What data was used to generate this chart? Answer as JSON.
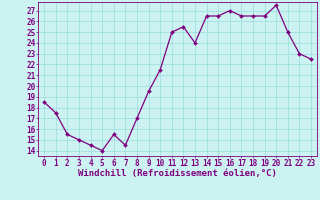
{
  "x": [
    0,
    1,
    2,
    3,
    4,
    5,
    6,
    7,
    8,
    9,
    10,
    11,
    12,
    13,
    14,
    15,
    16,
    17,
    18,
    19,
    20,
    21,
    22,
    23
  ],
  "y": [
    18.5,
    17.5,
    15.5,
    15.0,
    14.5,
    14.0,
    15.5,
    14.5,
    17.0,
    19.5,
    21.5,
    25.0,
    25.5,
    24.0,
    26.5,
    26.5,
    27.0,
    26.5,
    26.5,
    26.5,
    27.5,
    25.0,
    23.0,
    22.5
  ],
  "line_color": "#800080",
  "marker": "D",
  "marker_size": 2.0,
  "bg_color": "#ccf2f2",
  "grid_color": "#99dddd",
  "ylabel_ticks": [
    14,
    15,
    16,
    17,
    18,
    19,
    20,
    21,
    22,
    23,
    24,
    25,
    26,
    27
  ],
  "ylim": [
    13.5,
    27.8
  ],
  "xlim": [
    -0.5,
    23.5
  ],
  "xlabel": "Windchill (Refroidissement éolien,°C)",
  "tick_color": "#800080",
  "label_color": "#800080",
  "tick_fontsize": 5.5,
  "xlabel_fontsize": 6.5,
  "linewidth": 0.9
}
